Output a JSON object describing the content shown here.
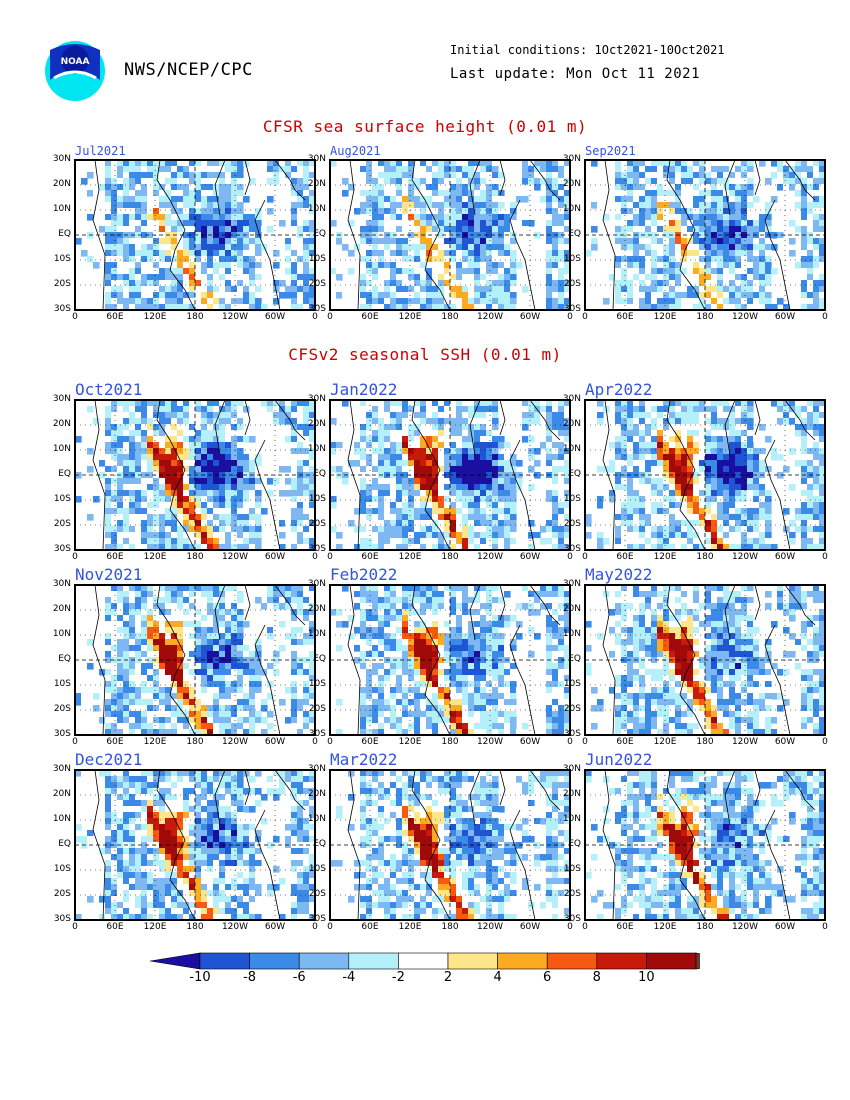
{
  "header": {
    "logo_text": "NOAA",
    "org": "NWS/NCEP/CPC",
    "initial_conditions": "Initial conditions: 1Oct2021-10Oct2021",
    "last_update": "Last update: Mon Oct 11 2021"
  },
  "sections": {
    "observed_title": "CFSR sea surface height (0.01 m)",
    "forecast_title": "CFSv2 seasonal SSH (0.01 m)"
  },
  "axes": {
    "lat_labels": [
      "30N",
      "20N",
      "10N",
      "EQ",
      "10S",
      "20S",
      "30S"
    ],
    "lon_labels": [
      "0",
      "60E",
      "120E",
      "180",
      "120W",
      "60W",
      "0"
    ]
  },
  "observed_panels": [
    {
      "title": "Jul2021"
    },
    {
      "title": "Aug2021"
    },
    {
      "title": "Sep2021"
    }
  ],
  "forecast_panels": [
    {
      "title": "Oct2021"
    },
    {
      "title": "Jan2022"
    },
    {
      "title": "Apr2022"
    },
    {
      "title": "Nov2021"
    },
    {
      "title": "Feb2022"
    },
    {
      "title": "May2022"
    },
    {
      "title": "Dec2021"
    },
    {
      "title": "Mar2022"
    },
    {
      "title": "Jun2022"
    }
  ],
  "colorbar": {
    "labels": [
      "-10",
      "-8",
      "-6",
      "-4",
      "-2",
      "2",
      "4",
      "6",
      "8",
      "10"
    ],
    "colors": [
      "#1a0fa0",
      "#1f55d2",
      "#3c8ae8",
      "#7db8f2",
      "#b4f0fa",
      "#ffffff",
      "#fde68a",
      "#fbaa22",
      "#f55a10",
      "#c81a0a",
      "#a00a0a",
      "#6e3828"
    ]
  }
}
